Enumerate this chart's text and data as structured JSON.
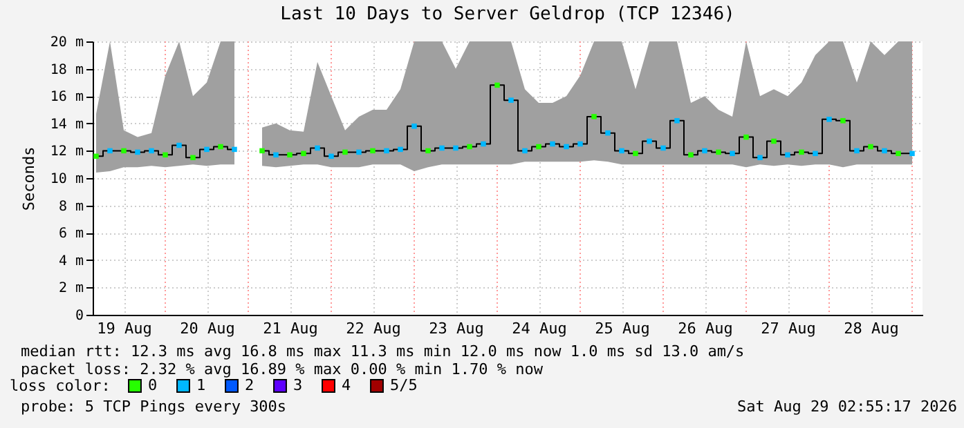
{
  "chart_data": {
    "type": "scatter",
    "title": "Last 10 Days to Server Geldrop (TCP 12346)",
    "ylabel": "Seconds",
    "x": [
      "2026-08-19T04:00",
      "2026-08-19T08:00",
      "2026-08-19T12:00",
      "2026-08-19T16:00",
      "2026-08-19T20:00",
      "2026-08-20T00:00",
      "2026-08-20T04:00",
      "2026-08-20T08:00",
      "2026-08-20T12:00",
      "2026-08-20T16:00",
      "2026-08-20T20:00",
      "2026-08-21T00:00",
      "2026-08-21T04:00",
      "2026-08-21T08:00",
      "2026-08-21T12:00",
      "2026-08-21T16:00",
      "2026-08-21T20:00",
      "2026-08-22T00:00",
      "2026-08-22T04:00",
      "2026-08-22T08:00",
      "2026-08-22T12:00",
      "2026-08-22T16:00",
      "2026-08-22T20:00",
      "2026-08-23T00:00",
      "2026-08-23T04:00",
      "2026-08-23T08:00",
      "2026-08-23T12:00",
      "2026-08-23T16:00",
      "2026-08-23T20:00",
      "2026-08-24T00:00",
      "2026-08-24T04:00",
      "2026-08-24T08:00",
      "2026-08-24T12:00",
      "2026-08-24T16:00",
      "2026-08-24T20:00",
      "2026-08-25T00:00",
      "2026-08-25T04:00",
      "2026-08-25T08:00",
      "2026-08-25T12:00",
      "2026-08-25T16:00",
      "2026-08-25T20:00",
      "2026-08-26T00:00",
      "2026-08-26T04:00",
      "2026-08-26T08:00",
      "2026-08-26T12:00",
      "2026-08-26T16:00",
      "2026-08-26T20:00",
      "2026-08-27T00:00",
      "2026-08-27T04:00",
      "2026-08-27T08:00",
      "2026-08-27T12:00",
      "2026-08-27T16:00",
      "2026-08-27T20:00",
      "2026-08-28T00:00",
      "2026-08-28T04:00",
      "2026-08-28T08:00",
      "2026-08-28T12:00",
      "2026-08-28T16:00",
      "2026-08-28T20:00",
      "2026-08-29T00:00"
    ],
    "series": [
      {
        "type": "step",
        "color": "#000000",
        "values": [
          11.6,
          12.0,
          12.0,
          11.9,
          12.0,
          11.7,
          12.4,
          11.5,
          12.1,
          12.3,
          12.1,
          null,
          12.0,
          11.7,
          11.7,
          11.8,
          12.2,
          11.6,
          11.9,
          11.9,
          12.0,
          12.0,
          12.1,
          13.8,
          12.0,
          12.2,
          12.2,
          12.3,
          12.5,
          16.8,
          15.7,
          12.0,
          12.3,
          12.5,
          12.3,
          12.5,
          14.5,
          13.3,
          12.0,
          11.8,
          12.7,
          12.2,
          14.2,
          11.7,
          12.0,
          11.9,
          11.8,
          13.0,
          11.5,
          12.7,
          11.7,
          11.9,
          11.8,
          14.3,
          14.2,
          12.0,
          12.3,
          12.0,
          11.8,
          11.8
        ],
        "lower": [
          10.4,
          10.5,
          10.8,
          10.8,
          10.9,
          10.8,
          10.9,
          11.0,
          10.9,
          11.0,
          11.0,
          null,
          10.9,
          10.8,
          10.9,
          11.0,
          11.0,
          10.8,
          10.8,
          10.8,
          11.0,
          11.0,
          11.0,
          10.5,
          10.8,
          11.0,
          11.0,
          11.0,
          11.0,
          11.0,
          11.0,
          11.2,
          11.2,
          11.2,
          11.2,
          11.2,
          11.3,
          11.2,
          11.0,
          11.0,
          11.0,
          11.0,
          11.0,
          11.0,
          11.0,
          11.0,
          11.0,
          10.8,
          11.0,
          10.9,
          11.0,
          10.9,
          11.0,
          11.0,
          10.8,
          11.0,
          11.0,
          11.0,
          11.0,
          11.0
        ],
        "upper": [
          14.7,
          20,
          13.5,
          13.0,
          13.3,
          17.5,
          20,
          16,
          17,
          20,
          20,
          null,
          13.7,
          14.0,
          13.5,
          13.4,
          18.5,
          16,
          13.5,
          14.5,
          15,
          15,
          16.5,
          20,
          20,
          20,
          18,
          20,
          20,
          20,
          20,
          16.5,
          15.5,
          15.5,
          16,
          17.5,
          20,
          20,
          20,
          16.5,
          20,
          20,
          20,
          15.5,
          16,
          15,
          14.5,
          20,
          16,
          16.5,
          16,
          17,
          19,
          20,
          20,
          17,
          20,
          19,
          20,
          20
        ]
      },
      {
        "name": "0",
        "color": "#26ff00",
        "marker": "square",
        "values": [
          11.6,
          null,
          12.0,
          null,
          null,
          11.7,
          null,
          11.5,
          null,
          12.3,
          null,
          null,
          12.0,
          null,
          11.7,
          11.8,
          null,
          null,
          11.9,
          null,
          12.0,
          null,
          null,
          null,
          12.0,
          null,
          null,
          12.3,
          null,
          16.8,
          null,
          null,
          12.3,
          null,
          null,
          null,
          14.5,
          null,
          null,
          11.8,
          null,
          null,
          null,
          11.7,
          null,
          11.9,
          null,
          13.0,
          null,
          12.7,
          null,
          11.9,
          null,
          null,
          14.2,
          null,
          12.3,
          null,
          11.8,
          null
        ]
      },
      {
        "name": "1",
        "color": "#00b8ff",
        "marker": "square",
        "values": [
          null,
          12.0,
          null,
          11.9,
          12.0,
          null,
          12.4,
          null,
          12.1,
          null,
          12.1,
          null,
          null,
          11.7,
          null,
          null,
          12.2,
          11.6,
          null,
          11.9,
          null,
          12.0,
          12.1,
          13.8,
          null,
          12.2,
          12.2,
          null,
          12.5,
          null,
          15.7,
          12.0,
          null,
          12.5,
          12.3,
          12.5,
          null,
          13.3,
          12.0,
          null,
          12.7,
          12.2,
          14.2,
          null,
          12.0,
          null,
          11.8,
          null,
          11.5,
          null,
          11.7,
          null,
          11.8,
          14.3,
          null,
          12.0,
          null,
          12.0,
          null,
          11.8
        ]
      },
      {
        "name": "2",
        "color": "#0059ff",
        "marker": "square",
        "values": [
          null,
          null,
          null,
          null,
          null,
          null,
          null,
          null,
          null,
          null,
          null,
          null,
          null,
          null,
          null,
          null,
          null,
          null,
          null,
          null,
          null,
          null,
          null,
          null,
          null,
          null,
          null,
          null,
          null,
          null,
          null,
          null,
          null,
          null,
          null,
          null,
          null,
          null,
          null,
          null,
          null,
          null,
          null,
          null,
          null,
          null,
          null,
          null,
          null,
          null,
          null,
          null,
          null,
          null,
          null,
          null,
          null,
          null,
          null,
          null
        ]
      },
      {
        "name": "3",
        "color": "#5e00ff",
        "marker": "square",
        "values": [
          null,
          null,
          null,
          null,
          null,
          null,
          null,
          null,
          null,
          null,
          null,
          null,
          null,
          null,
          null,
          null,
          null,
          null,
          null,
          null,
          null,
          null,
          null,
          null,
          null,
          null,
          null,
          null,
          null,
          null,
          null,
          null,
          null,
          null,
          null,
          null,
          null,
          null,
          null,
          null,
          null,
          null,
          null,
          null,
          null,
          null,
          null,
          null,
          null,
          null,
          null,
          null,
          null,
          null,
          null,
          null,
          null,
          null,
          null,
          null
        ]
      },
      {
        "name": "4",
        "color": "#ff0000",
        "marker": "square",
        "values": [
          null,
          null,
          null,
          null,
          null,
          null,
          null,
          null,
          null,
          null,
          null,
          null,
          null,
          null,
          null,
          null,
          null,
          null,
          null,
          null,
          null,
          null,
          null,
          null,
          null,
          null,
          null,
          null,
          null,
          null,
          null,
          null,
          null,
          null,
          null,
          null,
          null,
          null,
          null,
          null,
          null,
          null,
          null,
          null,
          null,
          null,
          null,
          null,
          null,
          null,
          null,
          null,
          null,
          null,
          null,
          null,
          null,
          null,
          null,
          null
        ]
      },
      {
        "name": "5/5",
        "color": "#a10000",
        "marker": "square",
        "values": [
          null,
          null,
          null,
          null,
          null,
          null,
          null,
          null,
          null,
          null,
          null,
          null,
          null,
          null,
          null,
          null,
          null,
          null,
          null,
          null,
          null,
          null,
          null,
          null,
          null,
          null,
          null,
          null,
          null,
          null,
          null,
          null,
          null,
          null,
          null,
          null,
          null,
          null,
          null,
          null,
          null,
          null,
          null,
          null,
          null,
          null,
          null,
          null,
          null,
          null,
          null,
          null,
          null,
          null,
          null,
          null,
          null,
          null,
          null,
          null
        ]
      }
    ],
    "legend_title": "loss color:",
    "legend": "bottom",
    "grid": true,
    "xlim": [
      "2026-08-19T03:00",
      "2026-08-29T03:00"
    ],
    "xticks": [
      {
        "value": "2026-08-19T12:00",
        "label": "19 Aug"
      },
      {
        "value": "2026-08-20T12:00",
        "label": "20 Aug"
      },
      {
        "value": "2026-08-21T12:00",
        "label": "21 Aug"
      },
      {
        "value": "2026-08-22T12:00",
        "label": "22 Aug"
      },
      {
        "value": "2026-08-23T12:00",
        "label": "23 Aug"
      },
      {
        "value": "2026-08-24T12:00",
        "label": "24 Aug"
      },
      {
        "value": "2026-08-25T12:00",
        "label": "25 Aug"
      },
      {
        "value": "2026-08-26T12:00",
        "label": "26 Aug"
      },
      {
        "value": "2026-08-27T12:00",
        "label": "27 Aug"
      },
      {
        "value": "2026-08-28T12:00",
        "label": "28 Aug"
      }
    ],
    "ylim": [
      0,
      20
    ],
    "yticks": [
      0,
      {
        "value": 2,
        "label": "2 m"
      },
      {
        "value": 4,
        "label": "4 m"
      },
      {
        "value": 6,
        "label": "6 m"
      },
      {
        "value": 8,
        "label": "8 m"
      },
      {
        "value": 10,
        "label": "10 m"
      },
      {
        "value": 12,
        "label": "12 m"
      },
      {
        "value": 14,
        "label": "14 m"
      },
      {
        "value": 16,
        "label": "16 m"
      },
      {
        "value": 18,
        "label": "18 m"
      },
      {
        "value": 20,
        "label": "20 m"
      }
    ],
    "ref_lines": [
      {
        "axis": "x",
        "value": "2026-08-20T00:00",
        "color": "#ff9999",
        "line_style": "dotted"
      },
      {
        "axis": "x",
        "value": "2026-08-21T00:00",
        "color": "#ff9999",
        "line_style": "dotted"
      },
      {
        "axis": "x",
        "value": "2026-08-22T00:00",
        "color": "#ff9999",
        "line_style": "dotted"
      },
      {
        "axis": "x",
        "value": "2026-08-23T00:00",
        "color": "#ff9999",
        "line_style": "dotted"
      },
      {
        "axis": "x",
        "value": "2026-08-24T00:00",
        "color": "#ff9999",
        "line_style": "dotted"
      },
      {
        "axis": "x",
        "value": "2026-08-25T00:00",
        "color": "#ff9999",
        "line_style": "dotted"
      },
      {
        "axis": "x",
        "value": "2026-08-26T00:00",
        "color": "#ff9999",
        "line_style": "dotted"
      },
      {
        "axis": "x",
        "value": "2026-08-27T00:00",
        "color": "#ff9999",
        "line_style": "dotted"
      },
      {
        "axis": "x",
        "value": "2026-08-28T00:00",
        "color": "#ff9999",
        "line_style": "dotted"
      },
      {
        "axis": "x",
        "value": "2026-08-29T00:00",
        "color": "#ff9999",
        "line_style": "dotted"
      }
    ],
    "annotations": [
      "median rtt:  12.3 ms avg  16.8 ms max  11.3 ms min  12.0 ms now  1.0 ms sd  13.0   am/s",
      "packet loss: 2.32 % avg  16.89 % max  0.00 % min  1.70 % now",
      "probe:       5 TCP Pings every 300s",
      "Sat Aug 29 02:55:17 2026"
    ]
  }
}
